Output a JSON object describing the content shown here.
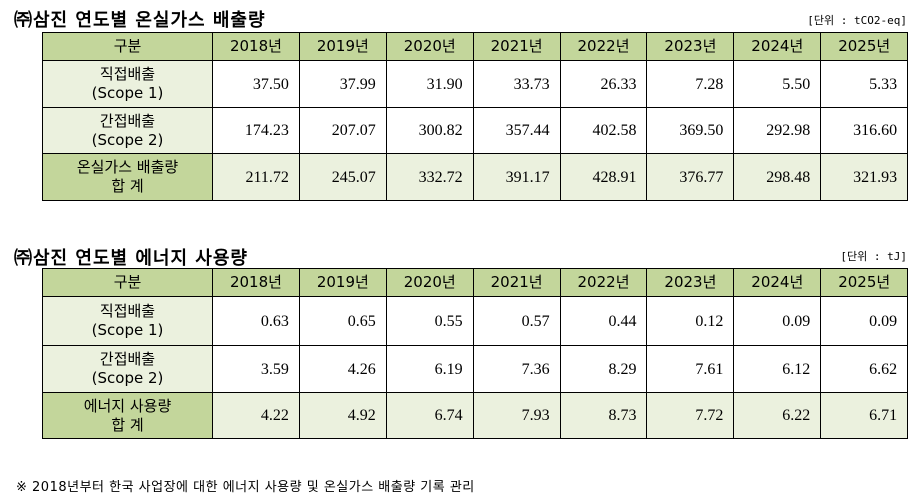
{
  "tables": [
    {
      "title": "㈜삼진 연도별 온실가스 배출량",
      "unit": "[단위 : tCO2-eq]",
      "header": [
        "구분",
        "2018년",
        "2019년",
        "2020년",
        "2021년",
        "2022년",
        "2023년",
        "2024년",
        "2025년"
      ],
      "rows": [
        {
          "label": [
            "직접배출",
            "(Scope 1)"
          ],
          "values": [
            "37.50",
            "37.99",
            "31.90",
            "33.73",
            "26.33",
            "7.28",
            "5.50",
            "5.33"
          ]
        },
        {
          "label": [
            "간접배출",
            "(Scope 2)"
          ],
          "values": [
            "174.23",
            "207.07",
            "300.82",
            "357.44",
            "402.58",
            "369.50",
            "292.98",
            "316.60"
          ]
        },
        {
          "label": [
            "온실가스 배출량",
            "합 계"
          ],
          "values": [
            "211.72",
            "245.07",
            "332.72",
            "391.17",
            "428.91",
            "376.77",
            "298.48",
            "321.93"
          ]
        }
      ]
    },
    {
      "title": "㈜삼진 연도별 에너지 사용량",
      "unit": "[단위 : tJ]",
      "header": [
        "구분",
        "2018년",
        "2019년",
        "2020년",
        "2021년",
        "2022년",
        "2023년",
        "2024년",
        "2025년"
      ],
      "rows": [
        {
          "label": [
            "직접배출",
            "(Scope 1)"
          ],
          "values": [
            "0.63",
            "0.65",
            "0.55",
            "0.57",
            "0.44",
            "0.12",
            "0.09",
            "0.09"
          ]
        },
        {
          "label": [
            "간접배출",
            "(Scope 2)"
          ],
          "values": [
            "3.59",
            "4.26",
            "6.19",
            "7.36",
            "8.29",
            "7.61",
            "6.12",
            "6.62"
          ]
        },
        {
          "label": [
            "에너지 사용량",
            "합 계"
          ],
          "values": [
            "4.22",
            "4.92",
            "6.74",
            "7.93",
            "8.73",
            "7.72",
            "6.22",
            "6.71"
          ]
        }
      ]
    }
  ],
  "footnote": "※ 2018년부터 한국 사업장에 대한 에너지 사용량 및 온실가스 배출량 기록 관리"
}
